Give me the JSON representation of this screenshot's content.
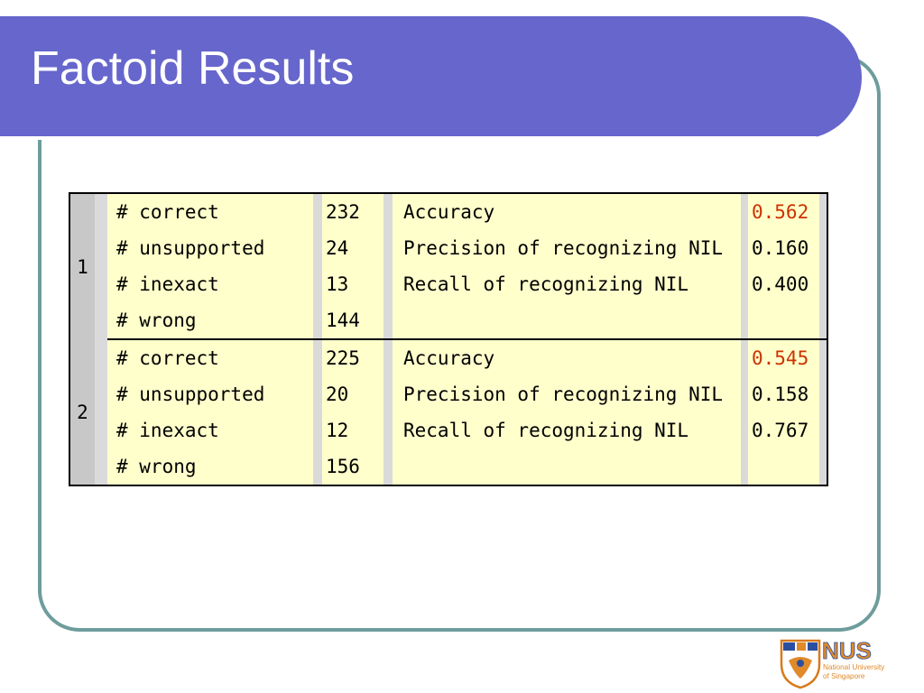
{
  "slide": {
    "title": "Factoid Results"
  },
  "runs": [
    {
      "run": "1",
      "rows": [
        {
          "name": "# correct",
          "count": "232",
          "metric": "Accuracy",
          "value": "0.562"
        },
        {
          "name": "# unsupported",
          "count": "24",
          "metric": "Precision of recognizing NIL",
          "value": "0.160"
        },
        {
          "name": "# inexact",
          "count": "13",
          "metric": "Recall of recognizing NIL",
          "value": "0.400"
        },
        {
          "name": "# wrong",
          "count": "144",
          "metric": "",
          "value": ""
        }
      ]
    },
    {
      "run": "2",
      "rows": [
        {
          "name": "# correct",
          "count": "225",
          "metric": "Accuracy",
          "value": "0.545"
        },
        {
          "name": "# unsupported",
          "count": "20",
          "metric": "Precision of recognizing NIL",
          "value": "0.158"
        },
        {
          "name": "# inexact",
          "count": "12",
          "metric": "Recall of recognizing NIL",
          "value": "0.767"
        },
        {
          "name": "# wrong",
          "count": "156",
          "metric": "",
          "value": ""
        }
      ]
    }
  ],
  "colors": {
    "title_bar": "#6666cc",
    "frame": "#6e9c9c",
    "cell_fill": "#ffffcc",
    "run_fill": "#c8c8c8",
    "accuracy_highlight": "#cc3300"
  },
  "logo": {
    "text": "NUS",
    "subtitle_line1": "National University",
    "subtitle_line2": "of Singapore",
    "icon": "nus-crest-icon"
  }
}
